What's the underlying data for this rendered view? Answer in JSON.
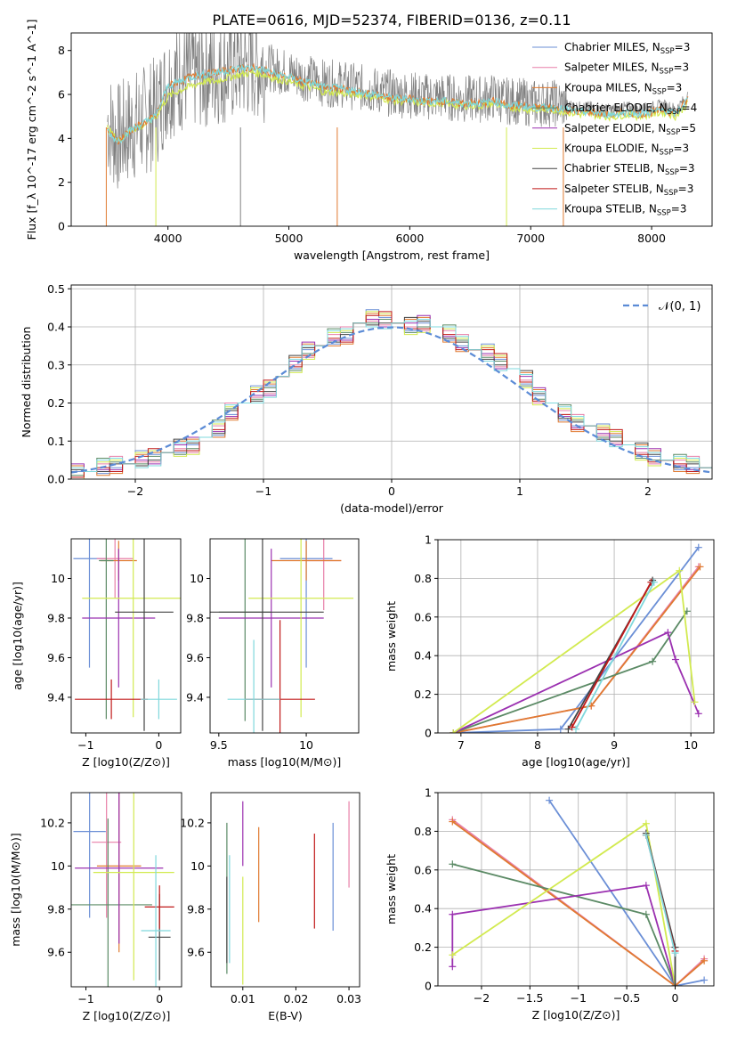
{
  "title": "PLATE=0616, MJD=52374, FIBERID=0136, z=0.11",
  "models": [
    {
      "name": "Chabrier MILES",
      "nssp": "3",
      "color": "#6b8fd6"
    },
    {
      "name": "Salpeter MILES",
      "nssp": "3",
      "color": "#e87fa8"
    },
    {
      "name": "Kroupa MILES",
      "nssp": "3",
      "color": "#e07a30"
    },
    {
      "name": "Chabrier ELODIE",
      "nssp": "4",
      "color": "#5b8a65"
    },
    {
      "name": "Salpeter ELODIE",
      "nssp": "5",
      "color": "#9b30b0"
    },
    {
      "name": "Kroupa ELODIE",
      "nssp": "3",
      "color": "#d2ea50"
    },
    {
      "name": "Chabrier STELIB",
      "nssp": "3",
      "color": "#444444"
    },
    {
      "name": "Salpeter STELIB",
      "nssp": "3",
      "color": "#c01818"
    },
    {
      "name": "Kroupa STELIB",
      "nssp": "3",
      "color": "#7fd8dc"
    }
  ],
  "chart_data": [
    {
      "id": "spectrum",
      "type": "line",
      "xlabel": "wavelength [Angstrom, rest frame]",
      "ylabel": "Flux [f_λ 10^-17 erg cm^-2 s^-1 A^-1]",
      "xlim": [
        3200,
        8500
      ],
      "ylim": [
        0,
        8.8
      ],
      "xticks": [
        4000,
        5000,
        6000,
        7000,
        8000
      ],
      "yticks": [
        0,
        2,
        4,
        6,
        8
      ],
      "legend": "top-right",
      "grid": false,
      "data_color": "#808080",
      "data_x": [
        3500,
        3550,
        3600,
        3650,
        3700,
        3800,
        3900,
        4000,
        4100,
        4200,
        4300,
        4400,
        4500,
        4600,
        4700,
        4800,
        4900,
        5000,
        5100,
        5200,
        5300,
        5400,
        5500,
        5600,
        5700,
        5800,
        5900,
        6000,
        6100,
        6200,
        6300,
        6400,
        6500,
        6600,
        6700,
        6800,
        6900,
        7000,
        7100,
        7200,
        7300,
        7400,
        7500,
        7600,
        7700,
        7800,
        7900,
        8000,
        8100,
        8200,
        8300
      ],
      "data_y": [
        4.8,
        4.2,
        4.0,
        4.3,
        4.5,
        4.8,
        5.2,
        6.5,
        6.8,
        6.9,
        7.0,
        7.1,
        7.2,
        7.3,
        7.4,
        7.3,
        7.1,
        7.0,
        6.8,
        6.7,
        6.5,
        6.5,
        6.4,
        6.3,
        6.2,
        6.1,
        6.0,
        6.0,
        5.9,
        5.9,
        5.9,
        5.8,
        5.8,
        5.8,
        5.9,
        5.7,
        5.7,
        5.6,
        5.6,
        5.6,
        5.5,
        5.4,
        5.4,
        5.3,
        5.3,
        5.4,
        5.3,
        5.4,
        5.5,
        5.3,
        5.9
      ],
      "model_x": [
        3500,
        3550,
        3600,
        3650,
        3700,
        3800,
        3900,
        4000,
        4100,
        4200,
        4300,
        4400,
        4500,
        4600,
        4700,
        4800,
        4900,
        5000,
        5100,
        5200,
        5300,
        5400,
        5500,
        5600,
        5700,
        5800,
        5900,
        6000,
        6100,
        6200,
        6300,
        6400,
        6500,
        6600,
        6700,
        6800,
        6900,
        7000,
        7100,
        7200,
        7300,
        7400,
        7500,
        7600,
        7700,
        7800,
        7900,
        8000,
        8100,
        8200,
        8300
      ],
      "model_y": [
        4.4,
        4.0,
        3.9,
        4.2,
        4.4,
        4.7,
        5.0,
        6.4,
        6.6,
        6.8,
        6.9,
        7.0,
        7.1,
        7.2,
        7.2,
        7.1,
        6.9,
        6.8,
        6.6,
        6.5,
        6.3,
        6.3,
        6.2,
        6.1,
        6.0,
        5.9,
        5.8,
        5.8,
        5.7,
        5.7,
        5.7,
        5.6,
        5.6,
        5.6,
        5.7,
        5.5,
        5.5,
        5.4,
        5.4,
        5.4,
        5.3,
        5.2,
        5.2,
        5.1,
        5.1,
        5.2,
        5.1,
        5.2,
        5.3,
        5.1,
        5.8
      ],
      "model_color": "#7fd8dc",
      "model2_color": "#d2ea50",
      "model2_y": [
        4.5,
        4.1,
        3.9,
        4.2,
        4.4,
        4.6,
        5.0,
        5.9,
        6.2,
        6.4,
        6.6,
        6.6,
        6.8,
        6.9,
        7.0,
        6.9,
        6.7,
        6.6,
        6.4,
        6.3,
        6.1,
        6.1,
        6.0,
        6.0,
        5.9,
        5.8,
        5.7,
        5.7,
        5.6,
        5.6,
        5.6,
        5.5,
        5.5,
        5.5,
        5.6,
        5.4,
        5.4,
        5.3,
        5.3,
        5.3,
        5.2,
        5.1,
        5.1,
        5.0,
        5.0,
        5.1,
        5.0,
        5.1,
        5.2,
        5.0,
        5.6
      ]
    },
    {
      "id": "residuals",
      "type": "line",
      "xlabel": "(data-model)/error",
      "ylabel": "Normed distribution",
      "xlim": [
        -2.5,
        2.5
      ],
      "ylim": [
        0,
        0.51
      ],
      "xticks": [
        -2,
        -1,
        0,
        1,
        2
      ],
      "yticks": [
        0.0,
        0.1,
        0.2,
        0.3,
        0.4,
        0.5
      ],
      "grid": true,
      "legend": "top-right",
      "gauss_label": "𝒩(0, 1)",
      "gauss_color": "#5b8bd6",
      "bin_edges": [
        -2.5,
        -2.4,
        -2.3,
        -2.2,
        -2.1,
        -2.0,
        -1.9,
        -1.8,
        -1.7,
        -1.6,
        -1.5,
        -1.4,
        -1.3,
        -1.2,
        -1.1,
        -1.0,
        -0.9,
        -0.8,
        -0.7,
        -0.6,
        -0.5,
        -0.4,
        -0.3,
        -0.2,
        -0.1,
        0.0,
        0.1,
        0.2,
        0.3,
        0.4,
        0.5,
        0.6,
        0.7,
        0.8,
        0.9,
        1.0,
        1.1,
        1.2,
        1.3,
        1.4,
        1.5,
        1.6,
        1.7,
        1.8,
        1.9,
        2.0,
        2.1,
        2.2,
        2.3,
        2.4,
        2.5
      ],
      "hist_values": [
        0.02,
        0.02,
        0.03,
        0.04,
        0.04,
        0.05,
        0.06,
        0.07,
        0.08,
        0.09,
        0.11,
        0.13,
        0.18,
        0.2,
        0.22,
        0.24,
        0.27,
        0.3,
        0.34,
        0.35,
        0.37,
        0.38,
        0.41,
        0.42,
        0.42,
        0.41,
        0.4,
        0.41,
        0.4,
        0.38,
        0.36,
        0.34,
        0.33,
        0.31,
        0.29,
        0.26,
        0.22,
        0.2,
        0.17,
        0.15,
        0.14,
        0.12,
        0.11,
        0.09,
        0.07,
        0.06,
        0.05,
        0.04,
        0.04,
        0.03
      ]
    },
    {
      "id": "z-age",
      "type": "scatter",
      "xlabel": "Z [log10(Z/Z⊙)]",
      "ylabel": "age  [log10(age/yr)]",
      "xlim": [
        -1.2,
        0.3
      ],
      "ylim": [
        9.22,
        10.2
      ],
      "xticks": [
        -1,
        0
      ],
      "yticks": [
        9.4,
        9.6,
        9.8,
        10.0
      ],
      "points": [
        {
          "x": -0.95,
          "y": 10.1,
          "xerr": 0.22,
          "yerr": 0.55
        },
        {
          "x": -0.6,
          "y": 10.1,
          "xerr": 0.25,
          "yerr": 0.2
        },
        {
          "x": -0.55,
          "y": 10.09,
          "xerr": 0.25,
          "yerr": 0.1
        },
        {
          "x": -0.72,
          "y": 10.09,
          "xerr": 0.1,
          "yerr": 0.8
        },
        {
          "x": -0.55,
          "y": 9.8,
          "xerr": 0.5,
          "yerr": 0.35
        },
        {
          "x": -0.35,
          "y": 9.9,
          "xerr": 0.7,
          "yerr": 0.6
        },
        {
          "x": -0.2,
          "y": 9.83,
          "xerr": 0.4,
          "yerr": 0.6
        },
        {
          "x": -0.65,
          "y": 9.39,
          "xerr": 0.5,
          "yerr": 0.1
        },
        {
          "x": 0.0,
          "y": 9.39,
          "xerr": 0.25,
          "yerr": 0.1
        }
      ]
    },
    {
      "id": "mass-age",
      "type": "scatter",
      "xlabel": "mass [log10(M/M⊙)]",
      "ylabel": "",
      "xlim": [
        9.45,
        10.3
      ],
      "ylim": [
        9.22,
        10.2
      ],
      "xticks": [
        9.5,
        10.0
      ],
      "yticks": [
        9.4,
        9.6,
        9.8,
        10.0
      ],
      "points": [
        {
          "x": 10.0,
          "y": 10.1,
          "xerr": 0.15,
          "yerr": 0.55
        },
        {
          "x": 10.1,
          "y": 10.09,
          "xerr": 0.1,
          "yerr": 0.25
        },
        {
          "x": 10.0,
          "y": 10.09,
          "xerr": 0.2,
          "yerr": 0.1
        },
        {
          "x": 9.65,
          "y": 9.83,
          "xerr": 0.15,
          "yerr": 0.55
        },
        {
          "x": 9.8,
          "y": 9.8,
          "xerr": 0.3,
          "yerr": 0.35
        },
        {
          "x": 9.97,
          "y": 9.9,
          "xerr": 0.3,
          "yerr": 0.6
        },
        {
          "x": 9.75,
          "y": 9.83,
          "xerr": 0.35,
          "yerr": 0.6
        },
        {
          "x": 9.85,
          "y": 9.39,
          "xerr": 0.2,
          "yerr": 0.4
        },
        {
          "x": 9.7,
          "y": 9.39,
          "xerr": 0.15,
          "yerr": 0.3
        }
      ]
    },
    {
      "id": "age-weight",
      "type": "line",
      "xlabel": "age  [log10(age/yr)]",
      "ylabel": "mass weight",
      "xlim": [
        6.7,
        10.3
      ],
      "ylim": [
        0,
        1.0
      ],
      "xticks": [
        7,
        8,
        9,
        10
      ],
      "yticks": [
        0.0,
        0.2,
        0.4,
        0.6,
        0.8,
        1.0
      ],
      "grid": true,
      "series": [
        {
          "x": [
            6.9,
            8.3,
            10.1
          ],
          "y": [
            0.0,
            0.02,
            0.96
          ]
        },
        {
          "x": [
            6.9,
            8.7,
            10.1
          ],
          "y": [
            0.0,
            0.14,
            0.86
          ]
        },
        {
          "x": [
            6.9,
            8.7,
            10.12
          ],
          "y": [
            0.0,
            0.14,
            0.86
          ]
        },
        {
          "x": [
            6.9,
            9.5,
            9.95
          ],
          "y": [
            0.0,
            0.37,
            0.63
          ]
        },
        {
          "x": [
            6.9,
            9.7,
            9.8,
            10.1
          ],
          "y": [
            0.0,
            0.52,
            0.38,
            0.1
          ]
        },
        {
          "x": [
            6.9,
            9.85,
            10.05
          ],
          "y": [
            0.0,
            0.84,
            0.16
          ]
        },
        {
          "x": [
            8.4,
            9.5
          ],
          "y": [
            0.02,
            0.79
          ]
        },
        {
          "x": [
            8.45,
            9.48
          ],
          "y": [
            0.03,
            0.78
          ]
        },
        {
          "x": [
            8.5,
            9.52
          ],
          "y": [
            0.02,
            0.78
          ]
        }
      ]
    },
    {
      "id": "z-mass",
      "type": "scatter",
      "xlabel": "Z [log10(Z/Z⊙)]",
      "ylabel": "mass [log10(M/M⊙)]",
      "xlim": [
        -1.2,
        0.3
      ],
      "ylim": [
        9.44,
        10.34
      ],
      "xticks": [
        -1,
        0
      ],
      "yticks": [
        9.6,
        9.8,
        10.0,
        10.2
      ],
      "points": [
        {
          "x": -0.95,
          "y": 10.16,
          "xerr": 0.22,
          "yerr": 0.4
        },
        {
          "x": -0.72,
          "y": 10.11,
          "xerr": 0.2,
          "yerr": 0.35
        },
        {
          "x": -0.55,
          "y": 10.0,
          "xerr": 0.3,
          "yerr": 0.4
        },
        {
          "x": -0.7,
          "y": 9.82,
          "xerr": 0.6,
          "yerr": 0.4
        },
        {
          "x": -0.55,
          "y": 9.99,
          "xerr": 0.6,
          "yerr": 0.35
        },
        {
          "x": -0.35,
          "y": 9.97,
          "xerr": 0.55,
          "yerr": 0.5
        },
        {
          "x": 0.0,
          "y": 9.67,
          "xerr": 0.15,
          "yerr": 0.2
        },
        {
          "x": 0.0,
          "y": 9.81,
          "xerr": 0.2,
          "yerr": 0.1
        },
        {
          "x": -0.05,
          "y": 9.7,
          "xerr": 0.2,
          "yerr": 0.35
        }
      ]
    },
    {
      "id": "ebv-mass",
      "type": "scatter",
      "xlabel": "E(B-V)",
      "ylabel": "",
      "xlim": [
        0.004,
        0.032
      ],
      "ylim": [
        9.44,
        10.34
      ],
      "xticks": [
        0.01,
        0.02,
        0.03
      ],
      "yticks": [
        9.6,
        9.8,
        10.0,
        10.2
      ],
      "points": [
        {
          "x": 0.027,
          "y": 9.95,
          "xerr": 0,
          "yerr": 0.25
        },
        {
          "x": 0.03,
          "y": 10.1,
          "xerr": 0,
          "yerr": 0.2
        },
        {
          "x": 0.013,
          "y": 9.96,
          "xerr": 0,
          "yerr": 0.22
        },
        {
          "x": 0.007,
          "y": 9.85,
          "xerr": 0,
          "yerr": 0.35
        },
        {
          "x": 0.01,
          "y": 10.15,
          "xerr": 0,
          "yerr": 0.15
        },
        {
          "x": 0.01,
          "y": 9.7,
          "xerr": 0,
          "yerr": 0.25
        },
        {
          "x": 0.007,
          "y": 9.75,
          "xerr": 0,
          "yerr": 0.2
        },
        {
          "x": 0.0235,
          "y": 9.93,
          "xerr": 0,
          "yerr": 0.22
        },
        {
          "x": 0.0075,
          "y": 9.8,
          "xerr": 0,
          "yerr": 0.25
        }
      ]
    },
    {
      "id": "z-weight",
      "type": "line",
      "xlabel": "Z [log10(Z/Z⊙)]",
      "ylabel": "mass weight",
      "xlim": [
        -2.45,
        0.4
      ],
      "ylim": [
        0,
        1.0
      ],
      "xticks": [
        -2.0,
        -1.5,
        -1.0,
        -0.5,
        0.0
      ],
      "yticks": [
        0.0,
        0.2,
        0.4,
        0.6,
        0.8,
        1.0
      ],
      "grid": true,
      "series": [
        {
          "x": [
            -1.3,
            0.0,
            0.3
          ],
          "y": [
            0.96,
            0.0,
            0.03
          ]
        },
        {
          "x": [
            -2.3,
            0.0,
            0.3
          ],
          "y": [
            0.86,
            0.0,
            0.14
          ]
        },
        {
          "x": [
            -2.3,
            0.0,
            0.3
          ],
          "y": [
            0.85,
            0.0,
            0.13
          ]
        },
        {
          "x": [
            -2.3,
            -0.3,
            0.0
          ],
          "y": [
            0.63,
            0.37,
            0.0
          ]
        },
        {
          "x": [
            -2.3,
            -2.3,
            -0.3,
            0.0
          ],
          "y": [
            0.1,
            0.37,
            0.52,
            0.0
          ]
        },
        {
          "x": [
            -2.3,
            -0.3,
            0.0
          ],
          "y": [
            0.16,
            0.84,
            0.0
          ]
        },
        {
          "x": [
            -0.3,
            0.0,
            0.0
          ],
          "y": [
            0.79,
            0.2,
            0.0
          ]
        },
        {
          "x": [
            -0.3,
            0.0
          ],
          "y": [
            0.78,
            0.18
          ]
        },
        {
          "x": [
            -0.3,
            0.0
          ],
          "y": [
            0.78,
            0.17
          ]
        }
      ]
    }
  ]
}
